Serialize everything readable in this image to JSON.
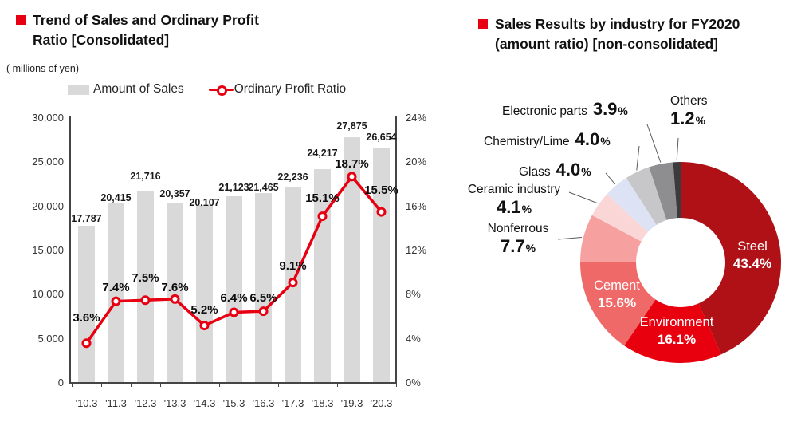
{
  "page": {
    "background": "#ffffff",
    "accent_red": "#e60012"
  },
  "left_chart": {
    "title_line1": "Trend of Sales and Ordinary Profit",
    "title_line2": "Ratio [Consolidated]",
    "unit_label": "( millions of yen)",
    "legend": {
      "bars": "Amount of Sales",
      "line": "Ordinary Profit Ratio"
    }
  },
  "right_chart": {
    "title_line1": "Sales Results by industry for FY2020",
    "title_line2": "(amount ratio) [non-consolidated]"
  },
  "chart_data": [
    {
      "type": "bar",
      "subtype": "bar-line-combo",
      "title": "Trend of Sales and Ordinary Profit Ratio [Consolidated]",
      "unit": "millions of yen",
      "categories": [
        "'10.3",
        "'11.3",
        "'12.3",
        "'13.3",
        "'14.3",
        "'15.3",
        "'16.3",
        "'17.3",
        "'18.3",
        "'19.3",
        "'20.3"
      ],
      "series": [
        {
          "name": "Amount of Sales",
          "type": "bar",
          "axis": "left",
          "color": "#d9d9d9",
          "values": [
            17787,
            20415,
            21716,
            20357,
            20107,
            21123,
            21465,
            22236,
            24217,
            27875,
            26654
          ]
        },
        {
          "name": "Ordinary Profit Ratio",
          "type": "line",
          "axis": "right",
          "color": "#e60012",
          "values": [
            3.6,
            7.4,
            7.5,
            7.6,
            5.2,
            6.4,
            6.5,
            9.1,
            15.1,
            18.7,
            15.5
          ]
        }
      ],
      "left_axis": {
        "min": 0,
        "max": 30000,
        "step": 5000
      },
      "right_axis": {
        "min": 0,
        "max": 24,
        "step": 4,
        "suffix": "%"
      },
      "grid": false,
      "legend_position": "top"
    },
    {
      "type": "pie",
      "subtype": "donut",
      "title": "Sales Results by industry for FY2020 (amount ratio) [non-consolidated]",
      "start_angle_deg": 0,
      "direction": "clockwise",
      "segments": [
        {
          "label": "Steel",
          "value": 43.4,
          "color": "#b01117",
          "label_style": "inside-white"
        },
        {
          "label": "Environment",
          "value": 16.1,
          "color": "#e8000f",
          "label_style": "inside-white"
        },
        {
          "label": "Cement",
          "value": 15.6,
          "color": "#f06969",
          "label_style": "inside-white"
        },
        {
          "label": "Nonferrous",
          "value": 7.7,
          "color": "#f6a0a0",
          "label_style": "outside"
        },
        {
          "label": "Ceramic industry",
          "value": 4.1,
          "color": "#fbd6d6",
          "label_style": "outside"
        },
        {
          "label": "Glass",
          "value": 4.0,
          "color": "#dde3f4",
          "label_style": "outside"
        },
        {
          "label": "Chemistry/Lime",
          "value": 4.0,
          "color": "#c7c7c9",
          "label_style": "outside"
        },
        {
          "label": "Electronic parts",
          "value": 3.9,
          "color": "#8e8e90",
          "label_style": "outside"
        },
        {
          "label": "Others",
          "value": 1.2,
          "color": "#3b3b3d",
          "label_style": "outside"
        }
      ]
    }
  ]
}
